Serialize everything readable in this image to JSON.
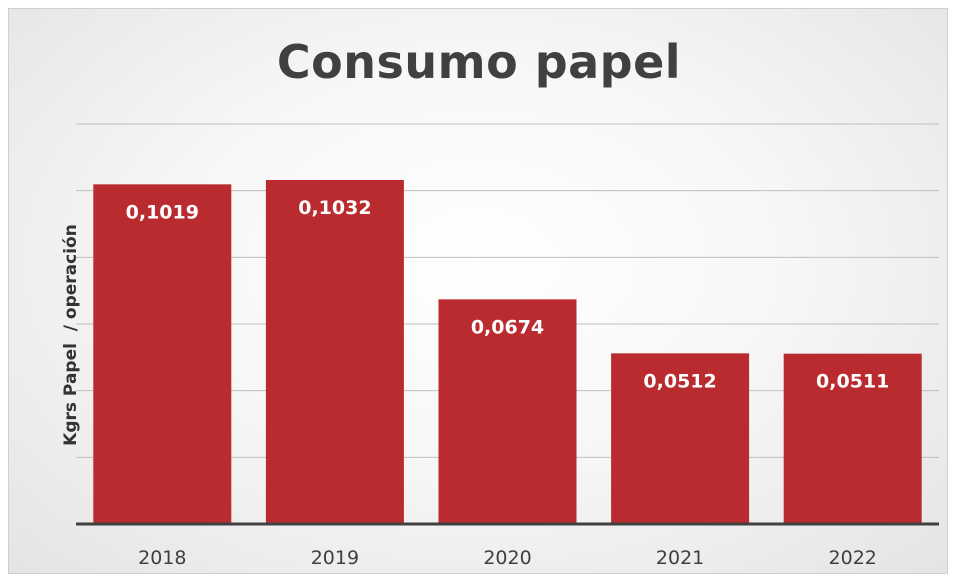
{
  "chart_data": {
    "type": "bar",
    "title": "Consumo papel",
    "xlabel": "",
    "ylabel": "Kgrs Papel  / operación",
    "categories": [
      "2018",
      "2019",
      "2020",
      "2021",
      "2022"
    ],
    "values": [
      0.1019,
      0.1032,
      0.0674,
      0.0512,
      0.0511
    ],
    "data_labels": [
      "0,1019",
      "0,1032",
      "0,0674",
      "0,0512",
      "0,0511"
    ],
    "ylim": [
      0,
      0.12
    ],
    "y_tick_step": 0.02,
    "grid": true,
    "y_tick_labels_visible": false,
    "bar_color": "#b92b2f",
    "grid_color": "#bfbfbf",
    "axis_color": "#404040"
  }
}
